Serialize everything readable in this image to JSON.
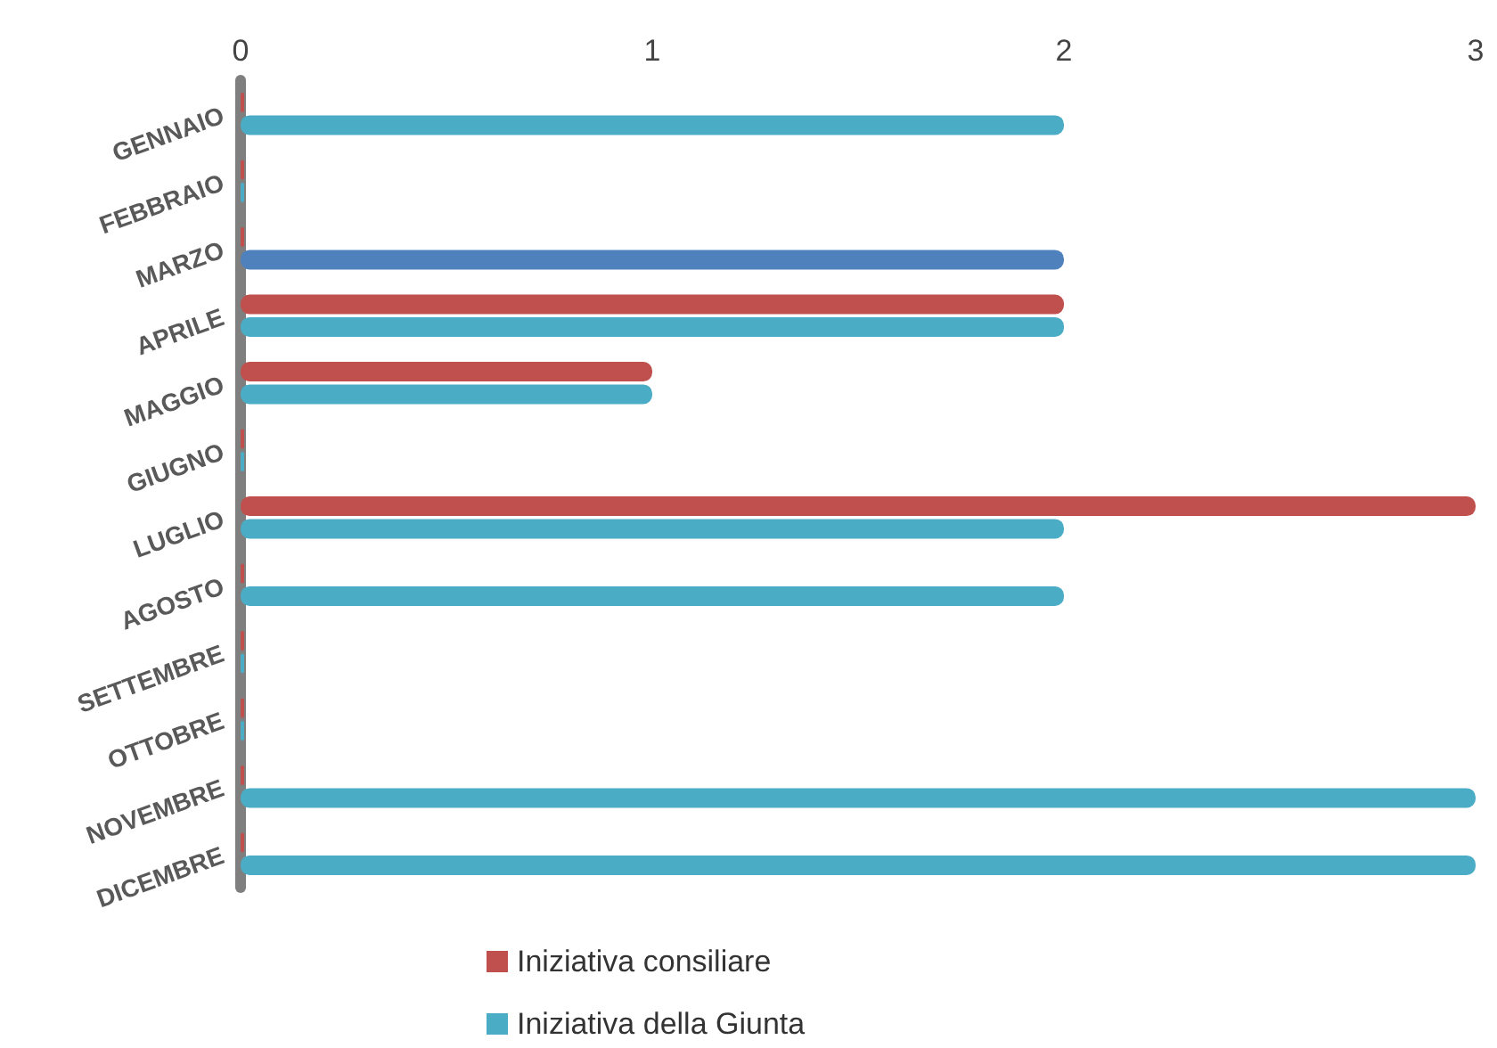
{
  "chart_data": {
    "type": "bar",
    "orientation": "horizontal",
    "categories": [
      "GENNAIO",
      "FEBBRAIO",
      "MARZO",
      "APRILE",
      "MAGGIO",
      "GIUGNO",
      "LUGLIO",
      "AGOSTO",
      "SETTEMBRE",
      "OTTOBRE",
      "NOVEMBRE",
      "DICEMBRE"
    ],
    "series": [
      {
        "name": "Iniziativa consiliare",
        "color": "#c0504d",
        "values": [
          0,
          0,
          0,
          2,
          1,
          0,
          3,
          0,
          0,
          0,
          0,
          0
        ]
      },
      {
        "name": "Iniziativa della Giunta",
        "color": "#4bacc6",
        "colors": [
          "#4bacc6",
          "#4bacc6",
          "#4f81bd",
          "#4bacc6",
          "#4bacc6",
          "#4bacc6",
          "#4bacc6",
          "#4bacc6",
          "#4bacc6",
          "#4bacc6",
          "#4bacc6",
          "#4bacc6"
        ],
        "values": [
          2,
          0,
          2,
          2,
          1,
          0,
          2,
          2,
          0,
          0,
          3,
          3
        ]
      }
    ],
    "xlim": [
      0,
      3
    ],
    "xticks": [
      0,
      1,
      2,
      3
    ],
    "grid": false,
    "legend": "bottom"
  }
}
